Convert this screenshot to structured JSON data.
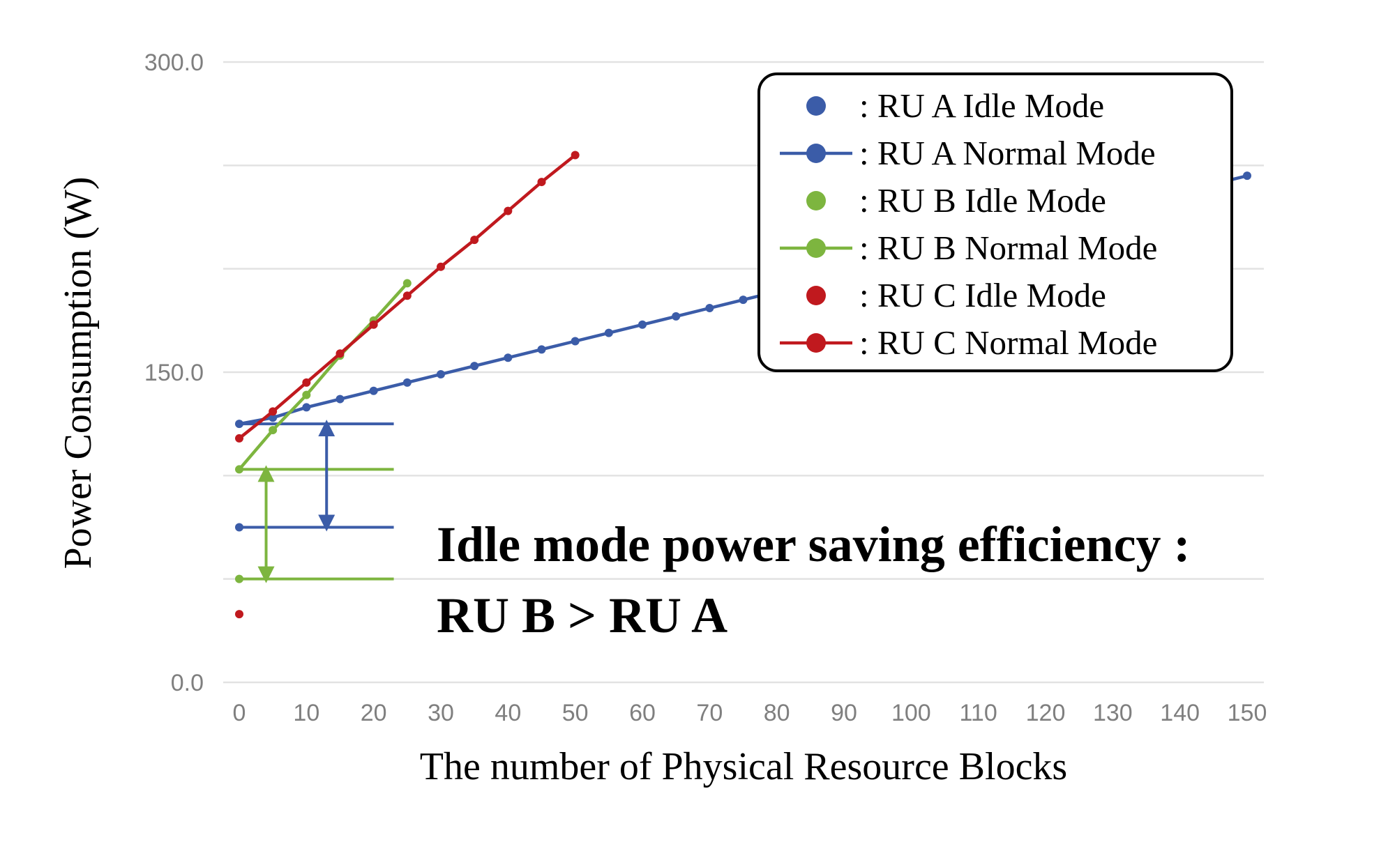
{
  "chart_data": {
    "type": "line",
    "xlabel": "The number of Physical Resource Blocks",
    "ylabel": "Power Consumption (W)",
    "xlim": [
      0,
      150
    ],
    "ylim": [
      0,
      300
    ],
    "x_ticks": [
      "0",
      "10",
      "20",
      "30",
      "40",
      "50",
      "60",
      "70",
      "80",
      "90",
      "100",
      "110",
      "120",
      "130",
      "140",
      "150"
    ],
    "y_ticks": [
      "0.0",
      "150.0",
      "300.0"
    ],
    "grid": true,
    "legend_position": "top-right",
    "series": [
      {
        "key": "ruA_idle",
        "name": ": RU A Idle Mode",
        "mode": "marker",
        "color": "#3b5ca8",
        "x": [
          0
        ],
        "y": [
          75
        ]
      },
      {
        "key": "ruA_normal",
        "name": ": RU A Normal Mode",
        "mode": "line",
        "color": "#3b5ca8",
        "x": [
          0,
          5,
          10,
          15,
          20,
          25,
          30,
          35,
          40,
          45,
          50,
          55,
          60,
          65,
          70,
          75,
          80,
          85,
          90,
          95,
          100,
          105,
          110,
          115,
          120,
          125,
          130,
          135,
          140,
          145,
          150
        ],
        "y": [
          125,
          128,
          133,
          137,
          141,
          145,
          149,
          153,
          157,
          161,
          165,
          169,
          173,
          177,
          181,
          185,
          189,
          193,
          197,
          201,
          205,
          209,
          213,
          217,
          221,
          225,
          229,
          233,
          237,
          241,
          245
        ]
      },
      {
        "key": "ruB_idle",
        "name": ": RU B Idle Mode",
        "mode": "marker",
        "color": "#7db53f",
        "x": [
          0
        ],
        "y": [
          50
        ]
      },
      {
        "key": "ruB_normal",
        "name": ": RU B Normal Mode",
        "mode": "line",
        "color": "#7db53f",
        "x": [
          0,
          5,
          10,
          15,
          20,
          25
        ],
        "y": [
          103,
          122,
          139,
          158,
          175,
          193
        ]
      },
      {
        "key": "ruC_idle",
        "name": ": RU C Idle Mode",
        "mode": "marker",
        "color": "#c0191e",
        "x": [
          0
        ],
        "y": [
          33
        ]
      },
      {
        "key": "ruC_normal",
        "name": ": RU C Normal Mode",
        "mode": "line",
        "color": "#c0191e",
        "x": [
          0,
          5,
          10,
          15,
          20,
          25,
          30,
          35,
          40,
          45,
          50
        ],
        "y": [
          118,
          131,
          145,
          159,
          173,
          187,
          201,
          214,
          228,
          242,
          255
        ]
      }
    ],
    "reference_lines": [
      {
        "color": "#3b5ca8",
        "y": 125,
        "x_range": [
          0,
          23
        ]
      },
      {
        "color": "#7db53f",
        "y": 103,
        "x_range": [
          0,
          23
        ]
      },
      {
        "color": "#3b5ca8",
        "y": 75,
        "x_range": [
          0,
          23
        ]
      },
      {
        "color": "#7db53f",
        "y": 50,
        "x_range": [
          0,
          23
        ]
      }
    ],
    "difference_arrows": [
      {
        "color": "#3b5ca8",
        "x": 13,
        "y_range": [
          75,
          125
        ]
      },
      {
        "color": "#7db53f",
        "x": 4,
        "y_range": [
          50,
          103
        ]
      }
    ],
    "annotation": [
      "Idle mode power saving efficiency :",
      "RU B > RU A"
    ]
  }
}
